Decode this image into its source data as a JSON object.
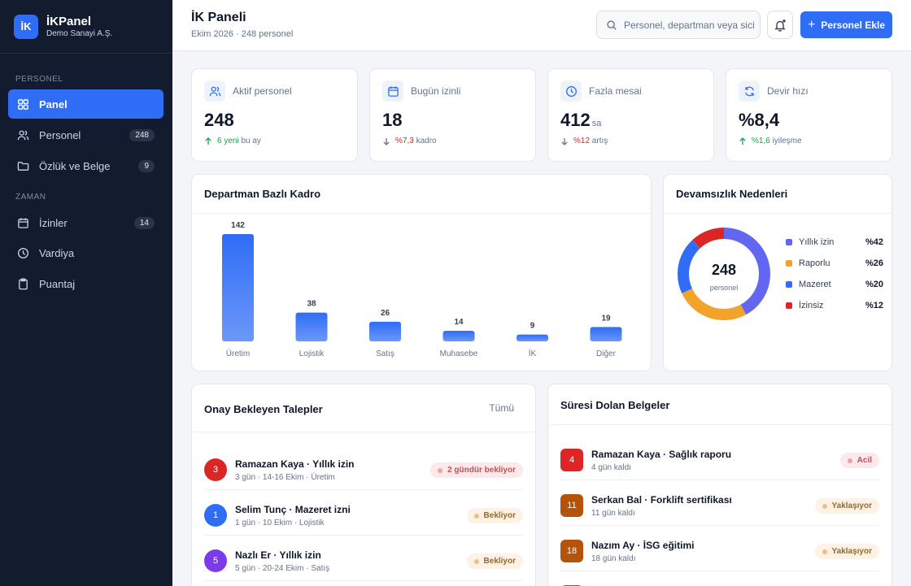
{
  "brand": {
    "logo": "İK",
    "name": "İKPanel",
    "company": "Demo Sanayi A.Ş."
  },
  "sidebar": {
    "sections": [
      {
        "title": "PERSONEL"
      },
      {
        "title": "ZAMAN"
      }
    ],
    "items": [
      {
        "label": "Panel",
        "icon": "grid-icon",
        "active": true
      },
      {
        "label": "Personel",
        "icon": "users-icon",
        "count": "248"
      },
      {
        "label": "Özlük ve Belge",
        "icon": "folder-icon",
        "count": "9"
      },
      {
        "label": "İzinler",
        "icon": "calendar-icon",
        "count": "14"
      },
      {
        "label": "Vardiya",
        "icon": "clock-icon"
      },
      {
        "label": "Puantaj",
        "icon": "clipboard-icon"
      }
    ]
  },
  "header": {
    "title": "İK Paneli",
    "subtitle": "Ekim 2026 · 248 personel",
    "search_placeholder": "Personel, departman veya sicil",
    "add_label": "Personel Ekle",
    "add_icon": "plus-icon",
    "bell_icon": "bell-icon"
  },
  "kpis": [
    {
      "label": "Aktif personel",
      "value": "248",
      "unit": "",
      "delta": "6 yeni",
      "delta_note": "bu ay",
      "dir": "up",
      "icon": "users-icon"
    },
    {
      "label": "Bugün izinli",
      "value": "18",
      "unit": "",
      "delta": "%7,3",
      "delta_note": "kadro",
      "dir": "down",
      "icon": "calendar-icon"
    },
    {
      "label": "Fazla mesai",
      "value": "412",
      "unit": "sa",
      "delta": "%12",
      "delta_note": "artış",
      "dir": "down",
      "icon": "clock-icon"
    },
    {
      "label": "Devir hızı",
      "value": "%8,4",
      "unit": "",
      "delta": "%1,6",
      "delta_note": "iyileşme",
      "dir": "up",
      "icon": "refresh-icon"
    }
  ],
  "colors": {
    "accent": "#2f6df6",
    "up": "#16a34a",
    "down": "#dc2626"
  },
  "chart_data": [
    {
      "type": "bar",
      "title": "Departman Bazlı Kadro",
      "categories": [
        "Üretim",
        "Lojistik",
        "Satış",
        "Muhasebe",
        "İK",
        "Diğer"
      ],
      "values": [
        142,
        38,
        26,
        14,
        9,
        19
      ]
    },
    {
      "type": "pie",
      "title": "Devamsızlık Nedenleri",
      "center_value": "248",
      "center_label": "personel",
      "labels": [
        "Yıllık izin",
        "Raporlu",
        "Mazeret",
        "İzinsiz"
      ],
      "values": [
        42,
        26,
        20,
        12
      ],
      "value_labels": [
        "%42",
        "%26",
        "%20",
        "%12"
      ],
      "colors": [
        "#6366f1",
        "#f2a32a",
        "#2f6df6",
        "#dc2626"
      ]
    }
  ],
  "requests": {
    "title": "Onay Bekleyen Talepler",
    "link": "Tümü",
    "items": [
      {
        "num": "3",
        "color": "#dc2626",
        "title": "Ramazan Kaya · Yıllık izin",
        "sub": "3 gün · 14-16 Ekim · Üretim",
        "badge": "2 gündür bekliyor",
        "tone": "red"
      },
      {
        "num": "1",
        "color": "#2f6df6",
        "title": "Selim Tunç · Mazeret izni",
        "sub": "1 gün · 10 Ekim · Lojistik",
        "badge": "Bekliyor",
        "tone": "amb"
      },
      {
        "num": "5",
        "color": "#7c3aed",
        "title": "Nazlı Er · Yıllık izin",
        "sub": "5 gün · 20-24 Ekim · Satış",
        "badge": "Bekliyor",
        "tone": "amb"
      }
    ]
  },
  "docs": {
    "title": "Süresi Dolan Belgeler",
    "items": [
      {
        "num": "4",
        "color": "#dc2626",
        "title": "Ramazan Kaya · Sağlık raporu",
        "sub": "4 gün kaldı",
        "badge": "Acil",
        "tone": "red"
      },
      {
        "num": "11",
        "color": "#b45309",
        "title": "Serkan Bal · Forklift sertifikası",
        "sub": "11 gün kaldı",
        "badge": "Yaklaşıyor",
        "tone": "amb"
      },
      {
        "num": "18",
        "color": "#b45309",
        "title": "Nazım Ay · İSG eğitimi",
        "sub": "18 gün kaldı",
        "badge": "Yaklaşıyor",
        "tone": "amb"
      }
    ]
  }
}
